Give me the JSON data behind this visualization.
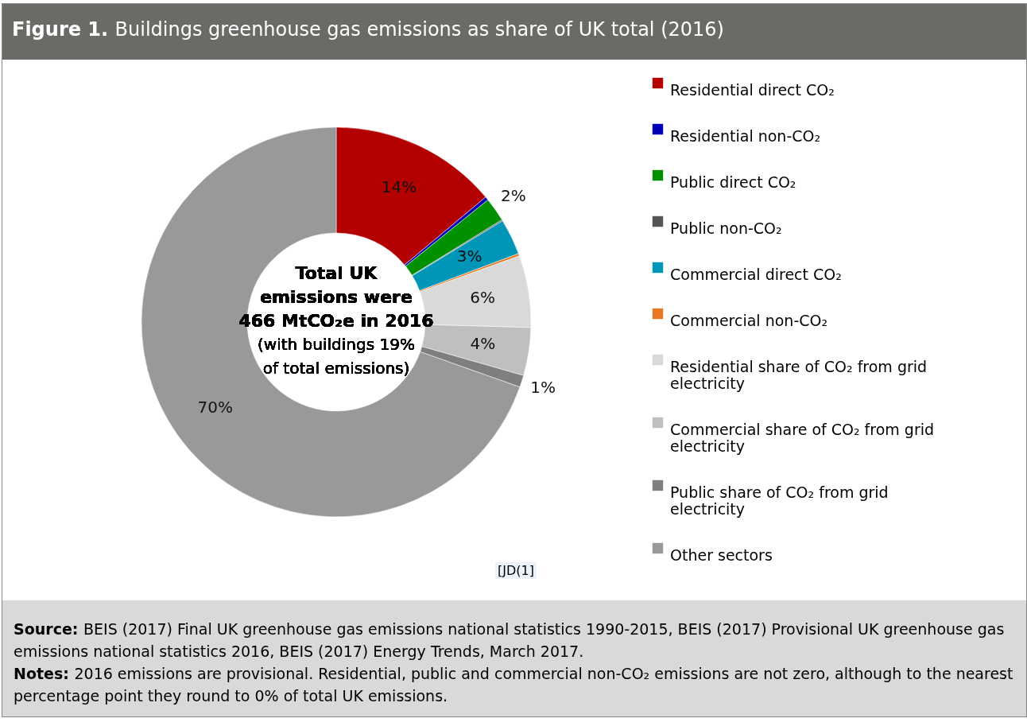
{
  "chart_data": {
    "type": "donut",
    "title": "Figure 1. Buildings greenhouse gas emissions as share of UK total (2016)",
    "categories": [
      "Residential direct CO₂",
      "Residential non-CO₂",
      "Public direct CO₂",
      "Public non-CO₂",
      "Commercial direct CO₂",
      "Commercial non-CO₂",
      "Residential share of CO₂ from grid electricity",
      "Commercial share of CO₂ from grid electricity",
      "Public share of CO₂ from grid electricity",
      "Other sectors"
    ],
    "values": [
      14,
      0.3,
      2,
      0.1,
      3,
      0.2,
      6,
      4,
      1,
      70
    ],
    "value_labels": [
      "14%",
      null,
      "2%",
      null,
      "3%",
      null,
      "6%",
      "4%",
      "1%",
      "70%"
    ],
    "colors": [
      "#b30000",
      "#0000b4",
      "#009000",
      "#555555",
      "#0096b8",
      "#e87722",
      "#d9d9d9",
      "#bfbfbf",
      "#7f7f7f",
      "#999999"
    ],
    "legend": "right",
    "annotations": [
      "Total UK emissions were 466 MtCO₂e in 2016",
      "(with buildings 19% of total emissions)",
      "[JD(1]",
      "Source: BEIS (2017) Final UK greenhouse gas emissions national statistics 1990-2015, BEIS (2017) Provisional UK greenhouse gas emissions national statistics 2016, BEIS (2017) Energy Trends, March 2017.",
      "Notes: 2016 emissions are provisional. Residential, public and commercial non-CO₂ emissions are not zero, although to the nearest percentage point they round to 0% of total UK emissions."
    ]
  }
}
